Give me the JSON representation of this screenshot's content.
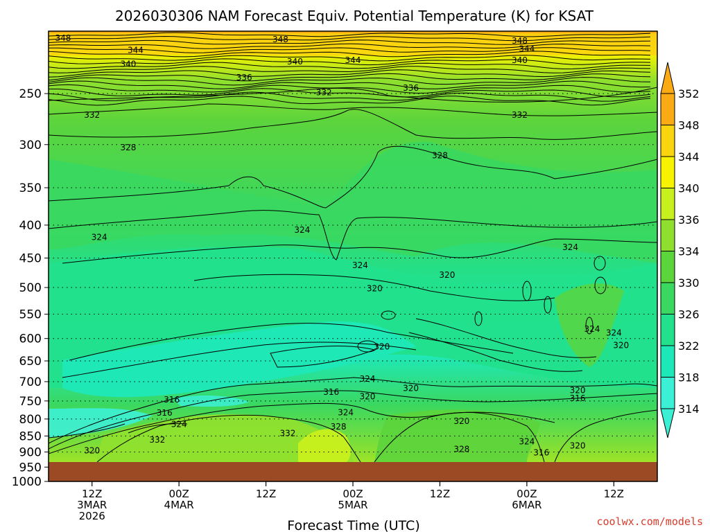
{
  "colors": {
    "ground": "#9c4a24",
    "credit": "#d83a2a",
    "palette": [
      "#3cf0d6",
      "#1fe8b8",
      "#22e08c",
      "#3ad860",
      "#5cd43c",
      "#8fe02e",
      "#c8f01e",
      "#f6f200",
      "#fbd410",
      "#f9aa14"
    ]
  },
  "chart_data": {
    "type": "heatmap",
    "title": "2026030306 NAM Forecast Equiv. Potential Temperature (K) for KSAT",
    "xlabel": "Forecast Time (UTC)",
    "ylabel": "",
    "y_scale": "log-pressure",
    "y_axis_inverted": true,
    "ylim": [
      1000,
      200
    ],
    "y_ticks": [
      250,
      300,
      350,
      400,
      450,
      500,
      550,
      600,
      650,
      700,
      750,
      800,
      850,
      900,
      950,
      1000
    ],
    "x_range_utc": [
      "2026-03-03 06Z",
      "2026-03-06 18Z"
    ],
    "x_ticks": [
      {
        "time": "2026-03-03 12Z",
        "labels": [
          "12Z",
          "3MAR",
          "2026"
        ]
      },
      {
        "time": "2026-03-04 00Z",
        "labels": [
          "00Z",
          "4MAR"
        ]
      },
      {
        "time": "2026-03-04 12Z",
        "labels": [
          "12Z"
        ]
      },
      {
        "time": "2026-03-05 00Z",
        "labels": [
          "00Z",
          "5MAR"
        ]
      },
      {
        "time": "2026-03-05 12Z",
        "labels": [
          "12Z"
        ]
      },
      {
        "time": "2026-03-06 00Z",
        "labels": [
          "00Z",
          "6MAR"
        ]
      },
      {
        "time": "2026-03-06 12Z",
        "labels": [
          "12Z"
        ]
      }
    ],
    "grid": "dotted horizontal lines at pressure ticks",
    "colorbar": {
      "ticks": [
        352,
        348,
        344,
        340,
        336,
        334,
        330,
        326,
        322,
        318,
        314
      ],
      "range": [
        314,
        352
      ],
      "extend": "both"
    },
    "contour_interval_K": 2,
    "contour_labels": [
      {
        "value": "348",
        "time": "2026-03-03 08Z",
        "pressure": 205
      },
      {
        "value": "348",
        "time": "2026-03-04 14Z",
        "pressure": 206
      },
      {
        "value": "348",
        "time": "2026-03-05 23Z",
        "pressure": 207
      },
      {
        "value": "344",
        "time": "2026-03-03 18Z",
        "pressure": 214
      },
      {
        "value": "344",
        "time": "2026-03-05 00Z",
        "pressure": 222
      },
      {
        "value": "344",
        "time": "2026-03-06 00Z",
        "pressure": 213
      },
      {
        "value": "340",
        "time": "2026-03-03 17Z",
        "pressure": 225
      },
      {
        "value": "340",
        "time": "2026-03-04 16Z",
        "pressure": 223
      },
      {
        "value": "340",
        "time": "2026-03-05 23Z",
        "pressure": 222
      },
      {
        "value": "336",
        "time": "2026-03-04 09Z",
        "pressure": 236
      },
      {
        "value": "336",
        "time": "2026-03-05 08Z",
        "pressure": 245
      },
      {
        "value": "332",
        "time": "2026-03-04 20Z",
        "pressure": 249
      },
      {
        "value": "332",
        "time": "2026-03-03 12Z",
        "pressure": 270
      },
      {
        "value": "332",
        "time": "2026-03-05 23Z",
        "pressure": 270
      },
      {
        "value": "328",
        "time": "2026-03-03 17Z",
        "pressure": 303
      },
      {
        "value": "328",
        "time": "2026-03-05 12Z",
        "pressure": 312
      },
      {
        "value": "324",
        "time": "2026-03-03 13Z",
        "pressure": 418
      },
      {
        "value": "324",
        "time": "2026-03-04 17Z",
        "pressure": 407
      },
      {
        "value": "324",
        "time": "2026-03-05 01Z",
        "pressure": 462
      },
      {
        "value": "324",
        "time": "2026-03-06 06Z",
        "pressure": 433
      },
      {
        "value": "324",
        "time": "2026-03-06 09Z",
        "pressure": 580
      },
      {
        "value": "324",
        "time": "2026-03-06 12Z",
        "pressure": 588
      },
      {
        "value": "324",
        "time": "2026-03-05 02Z",
        "pressure": 693
      },
      {
        "value": "324",
        "time": "2026-03-04 00Z",
        "pressure": 815
      },
      {
        "value": "324",
        "time": "2026-03-04 23Z",
        "pressure": 782
      },
      {
        "value": "324",
        "time": "2026-03-06 00Z",
        "pressure": 867
      },
      {
        "value": "320",
        "time": "2026-03-05 03Z",
        "pressure": 502
      },
      {
        "value": "320",
        "time": "2026-03-05 13Z",
        "pressure": 478
      },
      {
        "value": "320",
        "time": "2026-03-05 04Z",
        "pressure": 618
      },
      {
        "value": "320",
        "time": "2026-03-05 08Z",
        "pressure": 717
      },
      {
        "value": "320",
        "time": "2026-03-05 02Z",
        "pressure": 738
      },
      {
        "value": "320",
        "time": "2026-03-05 15Z",
        "pressure": 806
      },
      {
        "value": "320",
        "time": "2026-03-06 07Z",
        "pressure": 722
      },
      {
        "value": "320",
        "time": "2026-03-06 13Z",
        "pressure": 615
      },
      {
        "value": "320",
        "time": "2026-03-06 07Z",
        "pressure": 880
      },
      {
        "value": "320",
        "time": "2026-03-03 12Z",
        "pressure": 896
      },
      {
        "value": "316",
        "time": "2026-03-03 23Z",
        "pressure": 747
      },
      {
        "value": "316",
        "time": "2026-03-03 22Z",
        "pressure": 783
      },
      {
        "value": "316",
        "time": "2026-03-04 21Z",
        "pressure": 727
      },
      {
        "value": "316",
        "time": "2026-03-06 07Z",
        "pressure": 743
      },
      {
        "value": "316",
        "time": "2026-03-06 02Z",
        "pressure": 902
      },
      {
        "value": "332",
        "time": "2026-03-03 21Z",
        "pressure": 862
      },
      {
        "value": "332",
        "time": "2026-03-04 15Z",
        "pressure": 842
      },
      {
        "value": "328",
        "time": "2026-03-04 22Z",
        "pressure": 822
      },
      {
        "value": "328",
        "time": "2026-03-05 15Z",
        "pressure": 891
      }
    ]
  },
  "xlabel_text": "Forecast Time (UTC)",
  "credit": "coolwx.com/models"
}
